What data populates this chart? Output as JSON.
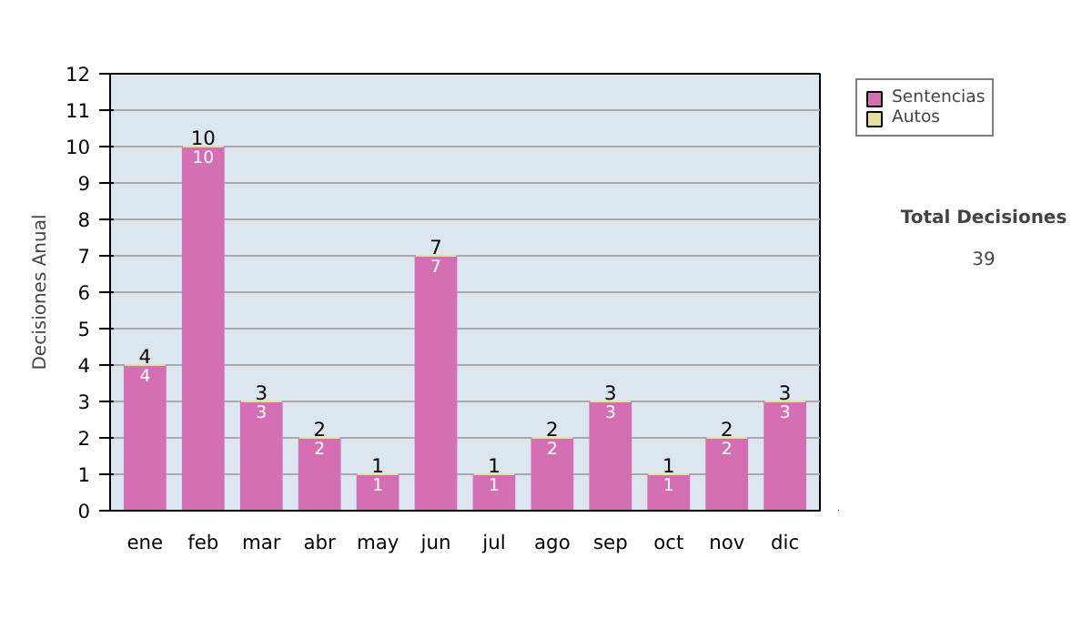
{
  "chart_data": {
    "type": "bar",
    "stacked": true,
    "ylabel": "Decisiones Anual",
    "categories": [
      "ene",
      "feb",
      "mar",
      "abr",
      "may",
      "jun",
      "jul",
      "ago",
      "sep",
      "oct",
      "nov",
      "dic"
    ],
    "series": [
      {
        "name": "Sentencias",
        "color": "#d46fb4",
        "values": [
          4,
          10,
          3,
          2,
          1,
          7,
          1,
          2,
          3,
          1,
          2,
          3
        ],
        "value_labels": [
          "4",
          "10",
          "3",
          "2",
          "1",
          "7",
          "1",
          "2",
          "3",
          "1",
          "2",
          "3"
        ]
      },
      {
        "name": "Autos",
        "color": "#e3e39c",
        "values": [
          0,
          0,
          0,
          0,
          0,
          0,
          0,
          0,
          0,
          0,
          0,
          0
        ]
      }
    ],
    "totals": [
      "4",
      "10",
      "3",
      "2",
      "1",
      "7",
      "1",
      "2",
      "3",
      "1",
      "2",
      "3"
    ],
    "ylim": [
      0,
      12
    ],
    "yticks": [
      0,
      1,
      2,
      3,
      4,
      5,
      6,
      7,
      8,
      9,
      10,
      11,
      12
    ],
    "grid": "y",
    "legend": "right",
    "annotations": [
      "Total Decisiones",
      "39"
    ]
  }
}
